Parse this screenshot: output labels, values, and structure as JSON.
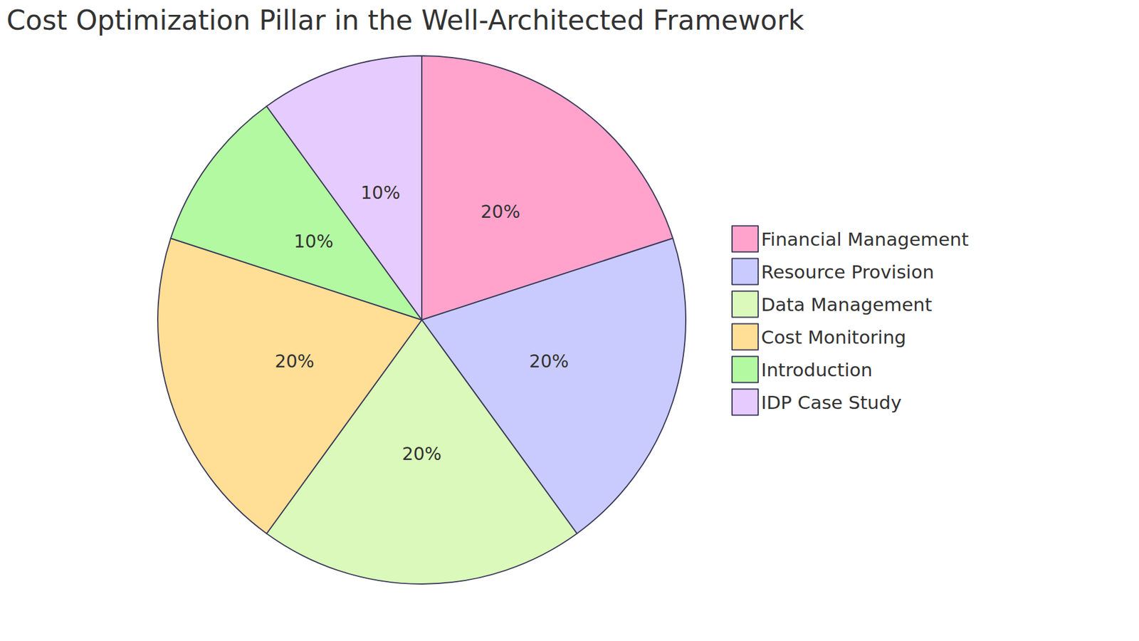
{
  "chart_data": {
    "type": "pie",
    "title": "Cost Optimization Pillar in the Well-Architected Framework",
    "categories": [
      "Financial Management",
      "Resource Provision",
      "Data Management",
      "Cost Monitoring",
      "Introduction",
      "IDP Case Study"
    ],
    "values": [
      20,
      20,
      20,
      20,
      10,
      10
    ],
    "value_labels": [
      "20%",
      "20%",
      "20%",
      "20%",
      "10%",
      "10%"
    ],
    "colors": [
      "#FFA3CC",
      "#C9CBFE",
      "#DAF9BA",
      "#FFDE96",
      "#B3F9A1",
      "#E6CBFE"
    ],
    "data_labels": true,
    "legend": "right"
  }
}
